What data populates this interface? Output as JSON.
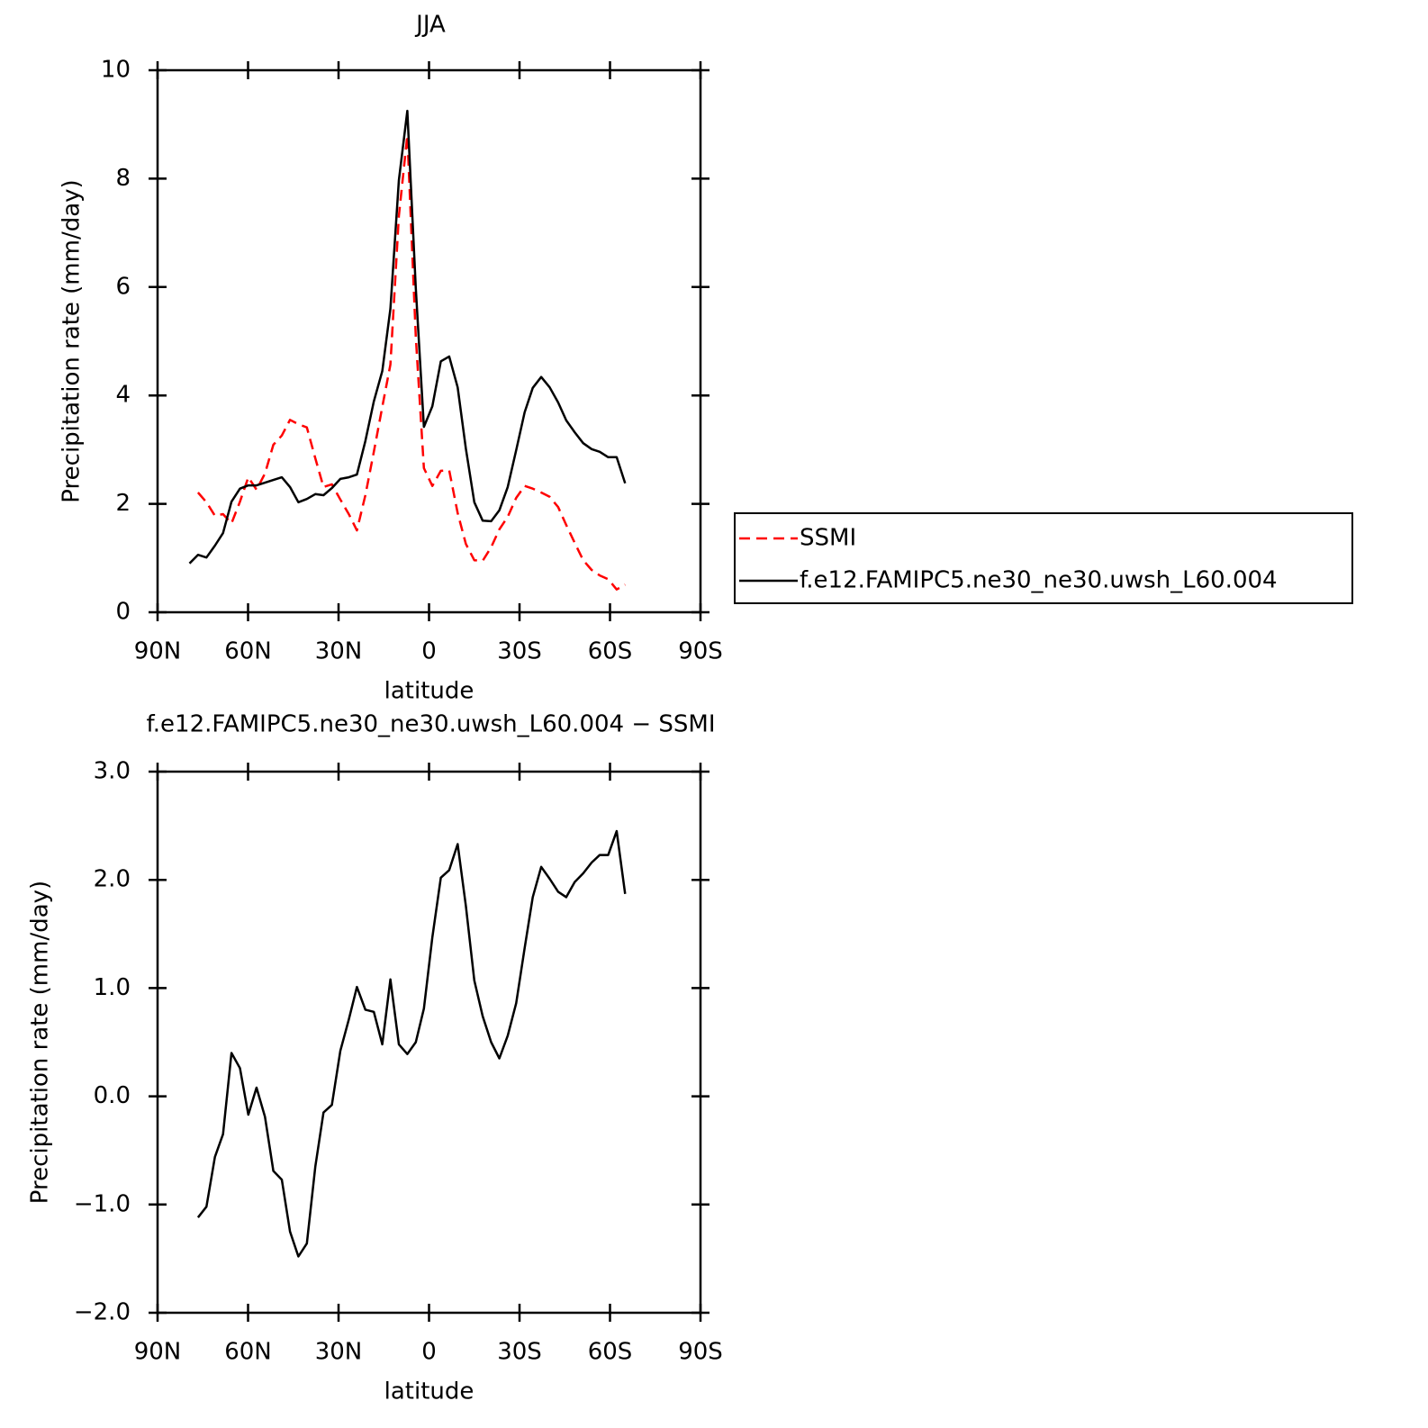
{
  "chart_data": [
    {
      "type": "line",
      "title": "JJA",
      "xlabel": "latitude",
      "ylabel": "Precipitation rate (mm/day)",
      "x": [
        79.4,
        76.6,
        73.8,
        71.0,
        68.3,
        65.5,
        62.7,
        59.9,
        57.2,
        54.4,
        51.6,
        48.8,
        46.1,
        43.3,
        40.5,
        37.7,
        35.0,
        32.2,
        29.4,
        26.6,
        23.9,
        21.1,
        18.3,
        15.5,
        12.8,
        10.0,
        7.2,
        4.4,
        1.7,
        -1.1,
        -3.9,
        -6.7,
        -9.5,
        -12.2,
        -15.0,
        -17.8,
        -20.6,
        -23.3,
        -26.1,
        -28.9,
        -31.7,
        -34.4,
        -37.2,
        -40.0,
        -42.8,
        -45.5,
        -48.3,
        -51.1,
        -53.9,
        -56.6,
        -59.4,
        -62.2,
        -65.0
      ],
      "series": [
        {
          "name": "SSMI",
          "color": "#ff0000",
          "dashed": true,
          "values": [
            null,
            2.21,
            2.03,
            1.78,
            1.81,
            1.64,
            2.04,
            2.49,
            2.26,
            2.56,
            3.09,
            3.26,
            3.55,
            3.47,
            3.41,
            2.84,
            2.31,
            2.36,
            2.08,
            1.81,
            1.51,
            2.16,
            2.96,
            3.79,
            4.57,
            7.31,
            8.8,
            5.08,
            2.66,
            2.33,
            2.61,
            2.62,
            1.83,
            1.26,
            0.96,
            0.95,
            1.2,
            1.53,
            1.76,
            2.11,
            2.33,
            2.28,
            2.21,
            2.13,
            1.94,
            1.61,
            1.28,
            0.96,
            0.78,
            0.68,
            0.61,
            0.42,
            0.51
          ]
        },
        {
          "name": "f.e12.FAMIPC5.ne30_ne30.uwsh_L60.004",
          "color": "#000000",
          "dashed": false,
          "values": [
            0.9,
            1.06,
            1.01,
            1.23,
            1.46,
            2.04,
            2.28,
            2.34,
            2.34,
            2.39,
            2.44,
            2.49,
            2.31,
            2.03,
            2.09,
            2.18,
            2.16,
            2.29,
            2.46,
            2.49,
            2.54,
            3.16,
            3.89,
            4.45,
            5.6,
            7.97,
            9.25,
            5.98,
            3.42,
            3.8,
            4.63,
            4.72,
            4.15,
            3.02,
            2.03,
            1.69,
            1.68,
            1.88,
            2.31,
            2.99,
            3.69,
            4.14,
            4.34,
            4.15,
            3.87,
            3.54,
            3.32,
            3.12,
            3.01,
            2.96,
            2.86,
            2.86,
            2.38
          ]
        }
      ],
      "xlim": [
        90,
        -90
      ],
      "xticks": [
        {
          "value": 90,
          "label": "90N"
        },
        {
          "value": 60,
          "label": "60N"
        },
        {
          "value": 30,
          "label": "30N"
        },
        0,
        {
          "value": -30,
          "label": "30S"
        },
        {
          "value": -60,
          "label": "60S"
        },
        {
          "value": -90,
          "label": "90S"
        }
      ],
      "ylim": [
        0,
        10
      ],
      "yticks": [
        0,
        2,
        4,
        6,
        8,
        10
      ],
      "legend": "right"
    },
    {
      "type": "line",
      "title": "f.e12.FAMIPC5.ne30_ne30.uwsh_L60.004 − SSMI",
      "xlabel": "latitude",
      "ylabel": "Precipitation rate (mm/day)",
      "x": [
        76.6,
        73.8,
        71.0,
        68.3,
        65.5,
        62.7,
        59.9,
        57.2,
        54.4,
        51.6,
        48.8,
        46.1,
        43.3,
        40.5,
        37.7,
        35.0,
        32.2,
        29.4,
        26.6,
        23.9,
        21.1,
        18.3,
        15.5,
        12.8,
        10.0,
        7.2,
        4.4,
        1.7,
        -1.1,
        -3.9,
        -6.7,
        -9.5,
        -12.2,
        -15.0,
        -17.8,
        -20.6,
        -23.3,
        -26.1,
        -28.9,
        -31.7,
        -34.4,
        -37.2,
        -40.0,
        -42.8,
        -45.5,
        -48.3,
        -51.1,
        -53.9,
        -56.6,
        -59.4,
        -62.2,
        -65.0
      ],
      "color": "#000000",
      "values": [
        -1.12,
        -1.02,
        -0.56,
        -0.35,
        0.4,
        0.26,
        -0.17,
        0.08,
        -0.19,
        -0.69,
        -0.77,
        -1.25,
        -1.48,
        -1.36,
        -0.65,
        -0.15,
        -0.08,
        0.42,
        0.71,
        1.01,
        0.8,
        0.78,
        0.48,
        1.08,
        0.48,
        0.39,
        0.5,
        0.81,
        1.47,
        2.02,
        2.09,
        2.33,
        1.76,
        1.07,
        0.74,
        0.5,
        0.35,
        0.56,
        0.86,
        1.37,
        1.84,
        2.12,
        2.01,
        1.89,
        1.84,
        1.98,
        2.06,
        2.16,
        2.23,
        2.23,
        2.45,
        1.87
      ],
      "xlim": [
        90,
        -90
      ],
      "xticks": [
        {
          "value": 90,
          "label": "90N"
        },
        {
          "value": 60,
          "label": "60N"
        },
        {
          "value": 30,
          "label": "30N"
        },
        0,
        {
          "value": -30,
          "label": "30S"
        },
        {
          "value": -60,
          "label": "60S"
        },
        {
          "value": -90,
          "label": "90S"
        }
      ],
      "ylim": [
        -2,
        3
      ],
      "yticks": [
        {
          "value": -2,
          "label": "−2.0"
        },
        {
          "value": -1,
          "label": "−1.0"
        },
        {
          "value": 0,
          "label": "0.0"
        },
        {
          "value": 1,
          "label": "1.0"
        },
        {
          "value": 2,
          "label": "2.0"
        },
        {
          "value": 3,
          "label": "3.0"
        }
      ]
    }
  ]
}
